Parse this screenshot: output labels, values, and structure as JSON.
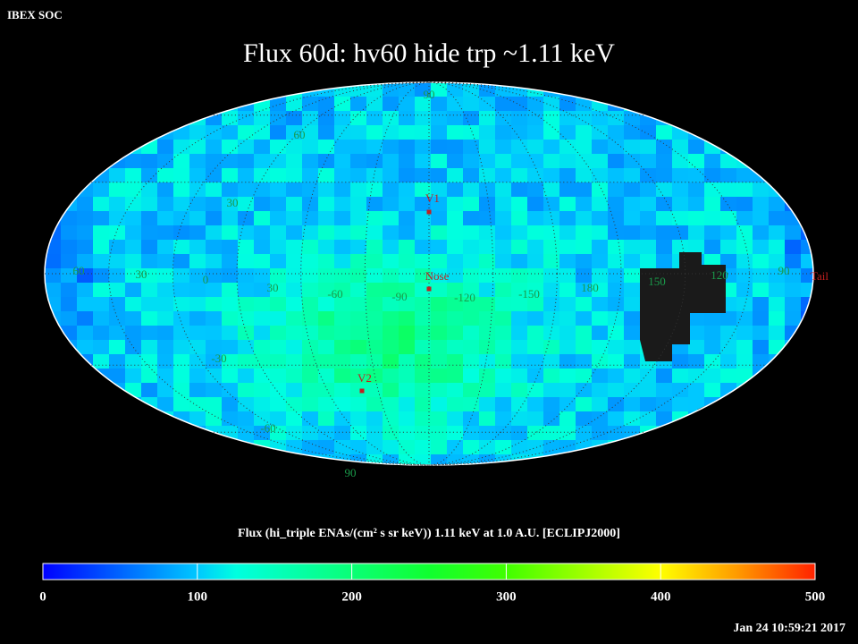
{
  "header": {
    "label": "IBEX SOC",
    "timestamp": "Jan 24 10:59:21 2017"
  },
  "title": "Flux   60d: hv60 hide trp ~1.11 keV",
  "map": {
    "latitude_labels": [
      "90",
      "60",
      "30",
      "-30",
      "-60",
      "90"
    ],
    "longitude_labels": [
      "60",
      "30",
      "0",
      "30",
      "-60",
      "-90",
      "-120",
      "-150",
      "180",
      "150",
      "120",
      "90"
    ],
    "markers": [
      {
        "label": "V1"
      },
      {
        "label": "Nose"
      },
      {
        "label": "V2"
      },
      {
        "label": "Tail"
      }
    ]
  },
  "colorbar": {
    "label": "Flux (hi_triple ENAs/(cm² s sr keV))  1.11 keV at 1.0 A.U. [ECLIPJ2000]",
    "range": [
      0,
      500
    ],
    "ticks": [
      0,
      100,
      200,
      300,
      400,
      500
    ]
  }
}
